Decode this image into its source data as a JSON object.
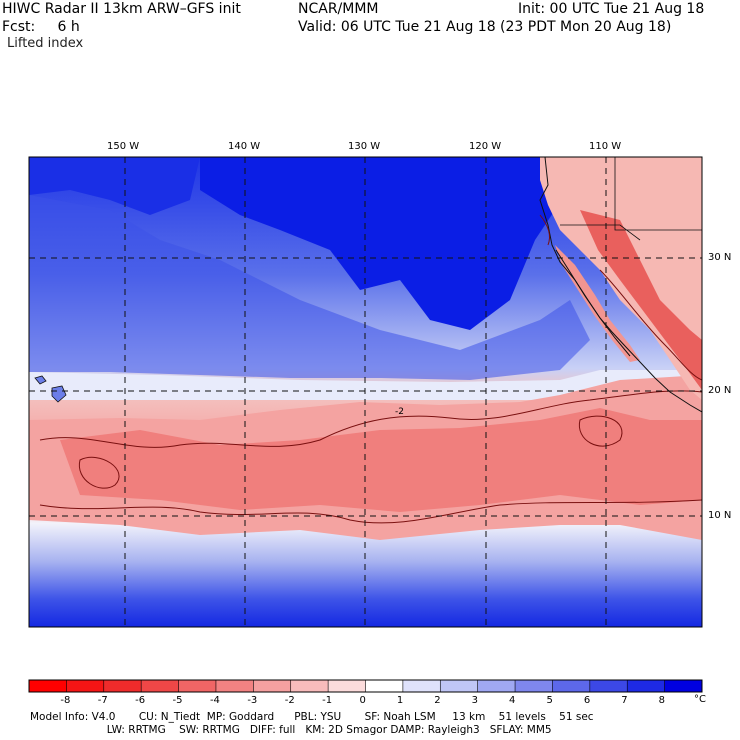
{
  "header": {
    "line1_left": "HIWC Radar II 13km ARW–GFS init",
    "line1_mid": "NCAR/MMM",
    "line1_right": "Init: 00 UTC Tue 21 Aug 18",
    "line2_left": "Fcst:     6 h",
    "line2_right": "Valid: 06 UTC Tue 21 Aug 18 (23 PDT Mon 20 Aug 18)",
    "line3_left": "Lifted index"
  },
  "map": {
    "lon_labels": [
      "150 W",
      "140 W",
      "130 W",
      "120 W",
      "110 W"
    ],
    "lat_labels": [
      "30 N",
      "20 N",
      "10 N"
    ],
    "contour_label": "-2",
    "colors": {
      "deep_blue": "#0a1ee6",
      "mid_blue": "#4a63e8",
      "light_blue": "#a9b6f0",
      "pale_blue": "#dde2fa",
      "white": "#fbfbfb",
      "pale_red": "#fbd6d4",
      "light_red": "#f5a8a6",
      "mid_red": "#ef7e7c",
      "deep_red": "#e53b3b",
      "land": "#f4c7c2"
    }
  },
  "colorbar": {
    "tick_labels": [
      "-8",
      "-7",
      "-6",
      "-5",
      "-4",
      "-3",
      "-2",
      "-1",
      "0",
      "1",
      "2",
      "3",
      "4",
      "5",
      "6",
      "7",
      "8"
    ],
    "unit": "°C",
    "bin_colors": [
      "#ff0000",
      "#f51515",
      "#ef2b2b",
      "#ef4747",
      "#f06565",
      "#f28282",
      "#f5a0a0",
      "#f8bcbc",
      "#fcdcdc",
      "#ffffff",
      "#dfe2fb",
      "#c0c6f6",
      "#a0a8f3",
      "#7f87ee",
      "#5d68ea",
      "#3c48e6",
      "#1e2ae4",
      "#0000e0"
    ]
  },
  "model_info": {
    "line1": "Model Info: V4.0       CU: N_Tiedt  MP: Goddard      PBL: YSU       SF: Noah LSM     13 km    51 levels    51 sec",
    "line2": "                       LW: RRTMG    SW: RRTMG   DIFF: full   KM: 2D Smagor DAMP: Rayleigh3   SFLAY: MM5"
  }
}
